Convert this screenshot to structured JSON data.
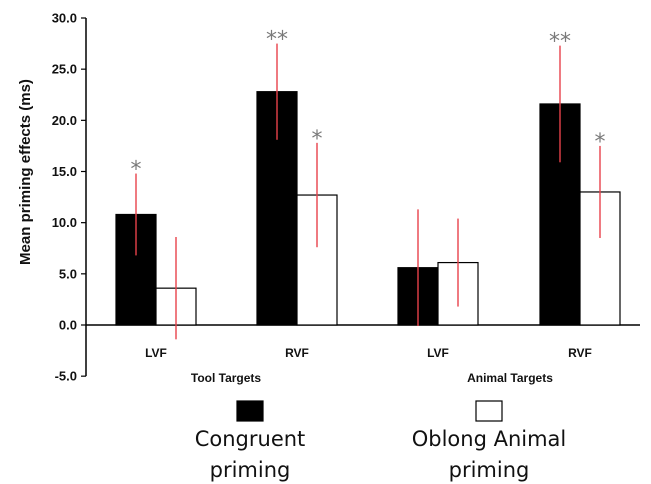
{
  "chart_data": {
    "type": "bar",
    "title": "",
    "ylabel": "Mean priming effects (ms)",
    "ylim": [
      -5,
      30
    ],
    "yticks": [
      "30.0",
      "25.0",
      "20.0",
      "15.0",
      "10.0",
      "5.0",
      "0.0",
      "-5.0"
    ],
    "groups": [
      {
        "label": "Tool Targets",
        "categories": [
          "LVF",
          "RVF"
        ]
      },
      {
        "label": "Animal Targets",
        "categories": [
          "LVF",
          "RVF"
        ]
      }
    ],
    "categories": [
      "LVF",
      "RVF",
      "LVF",
      "RVF"
    ],
    "series": [
      {
        "name": "Congruent priming",
        "color": "#000000",
        "values": [
          10.8,
          22.8,
          5.6,
          21.6
        ],
        "errors": [
          4.0,
          4.7,
          5.7,
          5.7
        ],
        "significance": [
          "*",
          "**",
          "",
          "**"
        ]
      },
      {
        "name": "Oblong Animal priming",
        "color": "#ffffff",
        "values": [
          3.6,
          12.7,
          6.1,
          13.0
        ],
        "errors": [
          5.0,
          5.1,
          4.3,
          4.5
        ],
        "significance": [
          "",
          "*",
          "",
          "*"
        ]
      }
    ],
    "error_bar_color": "#e8424b",
    "legend": {
      "placement": "bottom",
      "items": [
        {
          "line1": "Congruent",
          "line2": "priming"
        },
        {
          "line1": "Oblong Animal",
          "line2": "priming"
        }
      ]
    }
  }
}
